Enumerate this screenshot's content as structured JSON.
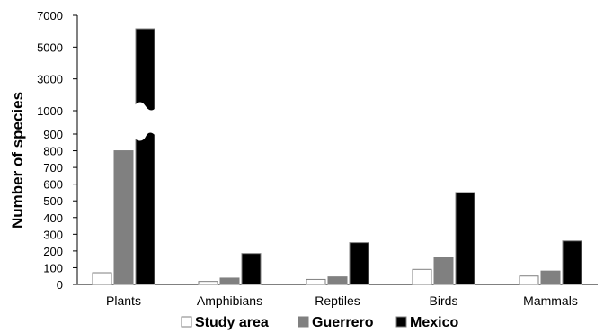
{
  "chart_data": {
    "type": "bar",
    "ylabel": "Number of species",
    "categories": [
      "Plants",
      "Amphibians",
      "Reptiles",
      "Birds",
      "Mammals"
    ],
    "series": [
      {
        "name": "Study area",
        "color": "#ffffff",
        "values": [
          70,
          18,
          30,
          90,
          50
        ]
      },
      {
        "name": "Guerrero",
        "color": "#808080",
        "values": [
          800,
          38,
          45,
          160,
          80
        ]
      },
      {
        "name": "Mexico",
        "color": "#000000",
        "values": [
          6150,
          185,
          250,
          550,
          260
        ]
      }
    ],
    "y_axis": {
      "broken": true,
      "lower_range": [
        0,
        900
      ],
      "upper_range": [
        1000,
        7000
      ],
      "lower_ticks": [
        "0",
        "100",
        "200",
        "300",
        "400",
        "500",
        "600",
        "700",
        "800",
        "900"
      ],
      "upper_ticks": [
        "1000",
        "3000",
        "5000",
        "7000"
      ]
    },
    "grid": false,
    "legend_position": "bottom"
  }
}
